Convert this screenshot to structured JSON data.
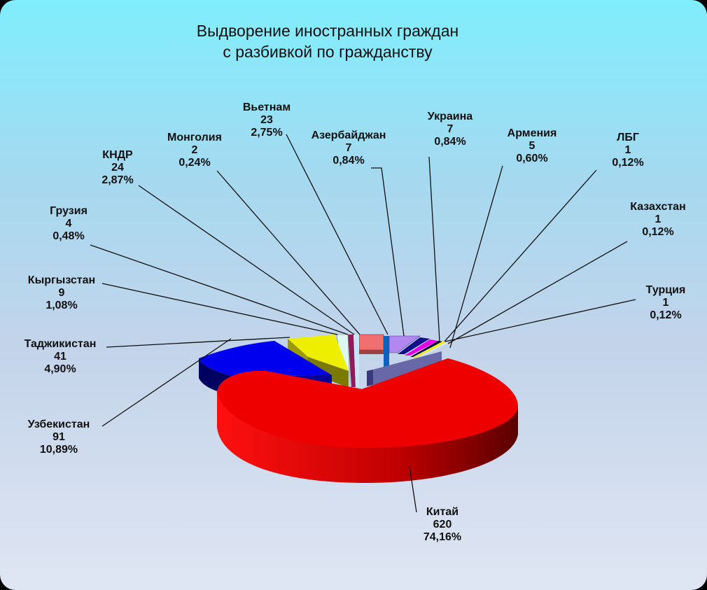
{
  "chart_data": {
    "type": "pie",
    "style": "3d-exploded",
    "title_lines": [
      "Выдворение иностранных граждан",
      "с разбивкой по гражданству"
    ],
    "slices": [
      {
        "name": "Китай",
        "value": "620",
        "percent": "74,16%",
        "color": "#ee0000"
      },
      {
        "name": "Турция",
        "value": "1",
        "percent": "0,12%",
        "color": "#dde6f2"
      },
      {
        "name": "Казахстан",
        "value": "1",
        "percent": "0,12%",
        "color": "#f2f200"
      },
      {
        "name": "ЛБГ",
        "value": "1",
        "percent": "0,12%",
        "color": "#0a0a3a"
      },
      {
        "name": "Армения",
        "value": "5",
        "percent": "0,60%",
        "color": "#e600e6"
      },
      {
        "name": "Украина",
        "value": "7",
        "percent": "0,84%",
        "color": "#10108a"
      },
      {
        "name": "Азербайджан",
        "value": "7",
        "percent": "0,84%",
        "color": "#b088f0"
      },
      {
        "name": "Вьетнам",
        "value": "23",
        "percent": "2,75%",
        "color": "#1060c0"
      },
      {
        "name": "Монголия",
        "value": "2",
        "percent": "0,24%",
        "color": "#c8e4f8"
      },
      {
        "name": "КНДР",
        "value": "24",
        "percent": "2,87%",
        "color": "#f07070"
      },
      {
        "name": "Грузия",
        "value": "4",
        "percent": "0,48%",
        "color": "#8e1c5a"
      },
      {
        "name": "Кыргызстан",
        "value": "9",
        "percent": "1,08%",
        "color": "#dcf8f0"
      },
      {
        "name": "Таджикистан",
        "value": "41",
        "percent": "4,90%",
        "color": "#eeee00"
      },
      {
        "name": "Узбекистан",
        "value": "91",
        "percent": "10,89%",
        "color": "#0000ee"
      }
    ],
    "legend": "none",
    "data_labels": "name, value, percent"
  }
}
